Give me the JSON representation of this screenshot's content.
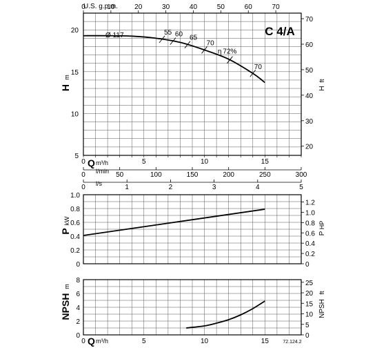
{
  "chart_data": {
    "type": "line",
    "model": "C 4/A",
    "code": "72.124.2",
    "impeller_label": "Ø  117",
    "eff_prefix": "η",
    "top_axis": {
      "unit": "U.S. g.p.m.",
      "ticks": [
        "0",
        "10",
        "20",
        "30",
        "40",
        "50",
        "60",
        "70"
      ]
    },
    "flow_axes": [
      {
        "unit_main": "Q",
        "unit_sub": "m³/h",
        "ticks": [
          "0",
          "5",
          "10",
          "15"
        ]
      },
      {
        "unit_main": "",
        "unit_sub": "l/min",
        "ticks": [
          "0",
          "50",
          "100",
          "150",
          "200",
          "250",
          "300"
        ]
      },
      {
        "unit_main": "",
        "unit_sub": "l/s",
        "ticks": [
          "0",
          "1",
          "2",
          "3",
          "4",
          "5"
        ]
      }
    ],
    "head_panel": {
      "ylabel_main": "H",
      "ylabel_unit": "m",
      "y2label_main": "H",
      "y2label_unit": "ft",
      "ylim": [
        5,
        22
      ],
      "y_ticks": [
        "5",
        "10",
        "15",
        "20"
      ],
      "y2_ticks": [
        "20",
        "30",
        "40",
        "50",
        "60",
        "70"
      ],
      "x": [
        0,
        2,
        4,
        6,
        8,
        10,
        12,
        14,
        15
      ],
      "y": [
        19.3,
        19.3,
        19.25,
        19.0,
        18.5,
        17.6,
        16.5,
        14.8,
        13.7
      ],
      "efficiency_marks": [
        {
          "label": "55",
          "x": 6.5
        },
        {
          "label": "60",
          "x": 7.4
        },
        {
          "label": "65",
          "x": 8.6
        },
        {
          "label": "70",
          "x": 10.0
        },
        {
          "label": "72%",
          "x": 12.1
        },
        {
          "label": "70",
          "x": 14.0
        }
      ]
    },
    "power_panel": {
      "ylabel_main": "P",
      "ylabel_unit": "kW",
      "y2label_main": "P",
      "y2label_unit": "HP",
      "ylim": [
        0,
        1.0
      ],
      "y_ticks": [
        "0",
        "0.2",
        "0.4",
        "0.6",
        "0.8",
        "1.0"
      ],
      "y2_ticks": [
        "0",
        "0.2",
        "0.4",
        "0.6",
        "0.8",
        "1.0",
        "1.2"
      ],
      "x": [
        0,
        15
      ],
      "y": [
        0.41,
        0.79
      ]
    },
    "npsh_panel": {
      "ylabel_main": "NPSH",
      "ylabel_unit": "m",
      "y2label_main": "NPSH",
      "y2label_unit": "ft",
      "ylim": [
        0,
        8
      ],
      "y_ticks": [
        "0",
        "2",
        "4",
        "6",
        "8"
      ],
      "y2_ticks": [
        "0",
        "5",
        "10",
        "15",
        "20",
        "25"
      ],
      "x_unit_main": "Q",
      "x_unit_sub": "m³/h",
      "x_ticks": [
        "0",
        "5",
        "10",
        "15"
      ],
      "x": [
        8.5,
        10,
        11,
        12,
        13,
        14,
        15
      ],
      "y": [
        1.0,
        1.3,
        1.7,
        2.2,
        2.9,
        3.8,
        4.9
      ]
    }
  }
}
